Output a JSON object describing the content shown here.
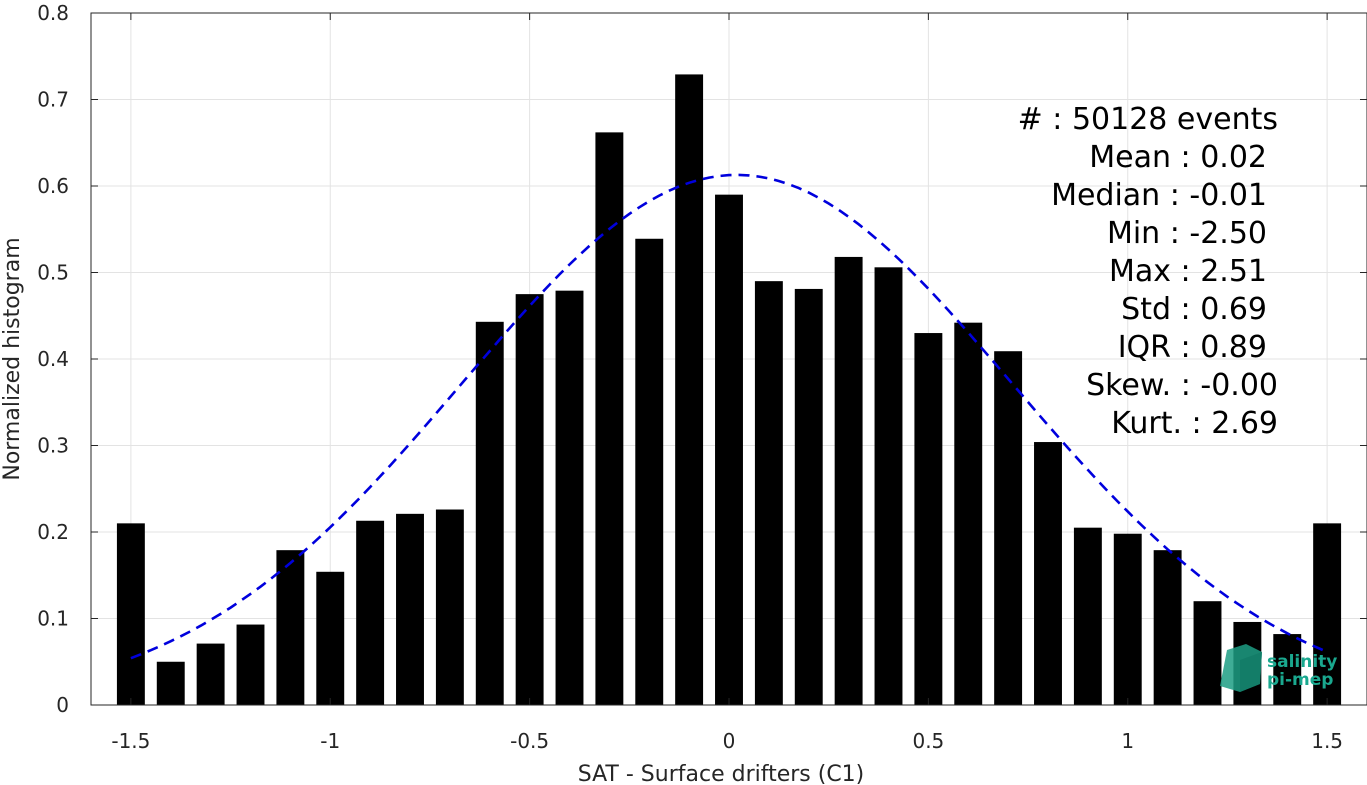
{
  "chart_data": {
    "type": "bar",
    "xlabel": "SAT - Surface drifters (C1)",
    "ylabel": "Normalized histogram",
    "xlim": [
      -1.6,
      1.6
    ],
    "ylim": [
      0,
      0.8
    ],
    "xticks": [
      -1.5,
      -1,
      -0.5,
      0,
      0.5,
      1,
      1.5
    ],
    "xtick_labels": [
      "-1.5",
      "-1",
      "-0.5",
      "0",
      "0.5",
      "1",
      "1.5"
    ],
    "yticks": [
      0,
      0.1,
      0.2,
      0.3,
      0.4,
      0.5,
      0.6,
      0.7,
      0.8
    ],
    "ytick_labels": [
      "0",
      "0.1",
      "0.2",
      "0.3",
      "0.4",
      "0.5",
      "0.6",
      "0.7",
      "0.8"
    ],
    "grid": true,
    "bin_centers": [
      -1.5,
      -1.4,
      -1.3,
      -1.2,
      -1.1,
      -1.0,
      -0.9,
      -0.8,
      -0.7,
      -0.6,
      -0.5,
      -0.4,
      -0.3,
      -0.2,
      -0.1,
      0.0,
      0.1,
      0.2,
      0.3,
      0.4,
      0.5,
      0.6,
      0.7,
      0.8,
      0.9,
      1.0,
      1.1,
      1.2,
      1.3,
      1.4,
      1.5
    ],
    "values": [
      0.21,
      0.05,
      0.071,
      0.093,
      0.179,
      0.154,
      0.213,
      0.221,
      0.226,
      0.443,
      0.475,
      0.479,
      0.662,
      0.539,
      0.729,
      0.59,
      0.49,
      0.481,
      0.518,
      0.506,
      0.43,
      0.442,
      0.409,
      0.304,
      0.205,
      0.198,
      0.179,
      0.12,
      0.096,
      0.082,
      0.21
    ],
    "bar_color": "#000000",
    "fit_curve": {
      "style": "dashed",
      "color": "#0000dd",
      "mean": 0.02,
      "std": 0.69,
      "x_range": [
        -1.5,
        1.5
      ]
    },
    "annotations": [
      "#  : 50128 events",
      "Mean : 0.02",
      "Median : -0.01",
      "Min : -2.50",
      "Max : 2.51",
      "Std : 0.69",
      "IQR : 0.89",
      "Skew. : -0.00",
      "Kurt. : 2.69"
    ]
  },
  "logo": {
    "line1": "salinity",
    "line2": "pi-mep",
    "color": "#1aa88f"
  }
}
